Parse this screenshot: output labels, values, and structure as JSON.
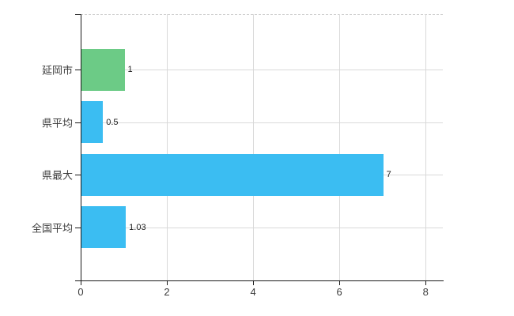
{
  "chart_data": {
    "type": "bar",
    "orientation": "horizontal",
    "categories": [
      "延岡市",
      "県平均",
      "県最大",
      "全国平均"
    ],
    "values": [
      1,
      0.5,
      7,
      1.03
    ],
    "value_labels": [
      "1",
      "0.5",
      "7",
      "1.03"
    ],
    "bar_colors": [
      "#6CCB86",
      "#3BBDF2",
      "#3BBDF2",
      "#3BBDF2"
    ],
    "x_ticks": [
      "0",
      "2",
      "4",
      "6",
      "8"
    ],
    "x_tick_values": [
      0,
      2,
      4,
      6,
      8
    ],
    "xlim": [
      0,
      8.4
    ],
    "grid": true,
    "legend": "none",
    "title": "",
    "colors": {
      "bar_green": "#6CCB86",
      "bar_blue": "#3BBDF2",
      "gridline": "#d9d9d9",
      "axis": "#1a1a1a",
      "tick_label_text": "#3d3d3d",
      "value_label_text": "#1c1c1c",
      "background": "#ffffff"
    }
  }
}
